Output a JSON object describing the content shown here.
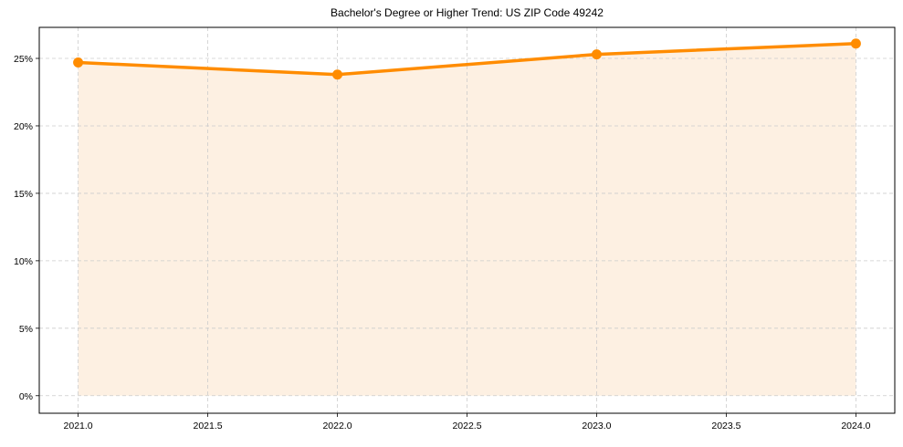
{
  "chart_data": {
    "type": "line",
    "title": "Bachelor's Degree or Higher Trend: US ZIP Code 49242",
    "xlabel": "",
    "ylabel": "",
    "x": [
      2021,
      2022,
      2023,
      2024
    ],
    "series": [
      {
        "name": "Bachelor's Degree or Higher",
        "values": [
          24.7,
          23.8,
          25.3,
          26.1
        ],
        "unit": "%"
      }
    ],
    "x_ticks": [
      "2021.0",
      "2021.5",
      "2022.0",
      "2022.5",
      "2023.0",
      "2023.5",
      "2024.0"
    ],
    "y_ticks": [
      "0%",
      "5%",
      "10%",
      "15%",
      "20%",
      "25%"
    ],
    "xlim": [
      2020.85,
      2024.15
    ],
    "ylim": [
      -1.3,
      27.3
    ],
    "grid": true,
    "legend": false,
    "fill_under_line": true,
    "colors": {
      "line": "#ff8c00",
      "fill": "#fdf0e2",
      "grid": "#cccccc"
    }
  }
}
